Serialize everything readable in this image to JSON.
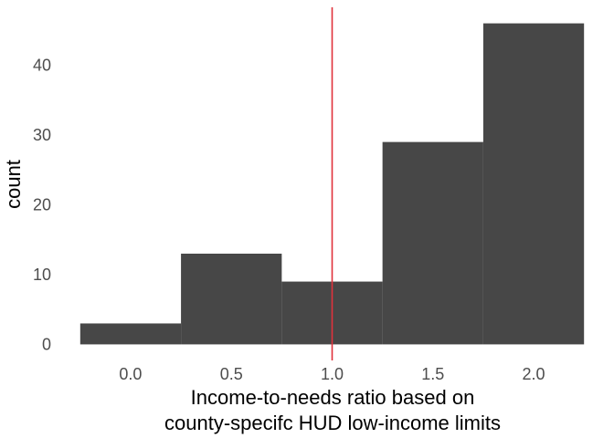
{
  "chart_data": {
    "type": "bar",
    "subtype": "histogram",
    "bins": [
      {
        "x0": -0.25,
        "x1": 0.25,
        "count": 3
      },
      {
        "x0": 0.25,
        "x1": 0.75,
        "count": 13
      },
      {
        "x0": 0.75,
        "x1": 1.25,
        "count": 9
      },
      {
        "x0": 1.25,
        "x1": 1.75,
        "count": 29
      },
      {
        "x0": 1.75,
        "x1": 2.25,
        "count": 46
      }
    ],
    "x_ticks": [
      {
        "value": 0.0,
        "label": "0.0"
      },
      {
        "value": 0.5,
        "label": "0.5"
      },
      {
        "value": 1.0,
        "label": "1.0"
      },
      {
        "value": 1.5,
        "label": "1.5"
      },
      {
        "value": 2.0,
        "label": "2.0"
      }
    ],
    "y_ticks": [
      {
        "value": 0,
        "label": "0"
      },
      {
        "value": 10,
        "label": "10"
      },
      {
        "value": 20,
        "label": "20"
      },
      {
        "value": 30,
        "label": "30"
      },
      {
        "value": 40,
        "label": "40"
      }
    ],
    "xlabel": [
      "Income-to-needs ratio based on",
      "county-specifc HUD low-income limits"
    ],
    "ylabel": "count",
    "xlim": [
      -0.3625,
      2.3625
    ],
    "ylim": [
      -2.3,
      48.3
    ],
    "reference_line": {
      "x": 1.0,
      "color": "#e0323c"
    },
    "bar_color": "#474747",
    "grid": false
  }
}
